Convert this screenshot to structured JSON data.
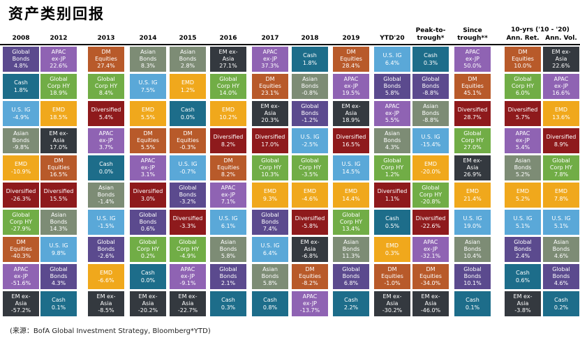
{
  "title": "资产类别回报",
  "source": "(来源：BofA Global Investment Strategy, Bloomberg*YTD)",
  "colors": {
    "Global Bonds": "#5b4a8e",
    "Cash": "#1d6d8a",
    "U.S. IG": "#5aa8d8",
    "Asian Bonds": "#7d8c75",
    "EMD": "#f0a81c",
    "Diversified": "#8e1a1c",
    "Global Corp HY": "#71ad46",
    "DM Equities": "#b85a2a",
    "APAC ex-JP": "#8f63b3",
    "EM ex-Asia": "#34393f"
  },
  "chart_data": {
    "type": "table",
    "title": "资产类别回报",
    "tenyr_header": "10-yrs ('10 - '20)",
    "columns": [
      {
        "label": "2008",
        "cells": [
          [
            "Global Bonds",
            "4.8%"
          ],
          [
            "Cash",
            "1.8%"
          ],
          [
            "U.S. IG",
            "-4.9%"
          ],
          [
            "Asian Bonds",
            "-9.8%"
          ],
          [
            "EMD",
            "-10.9%"
          ],
          [
            "Diversified",
            "-26.3%"
          ],
          [
            "Global Corp HY",
            "-27.9%"
          ],
          [
            "DM Equities",
            "-40.3%"
          ],
          [
            "APAC ex-JP",
            "-51.6%"
          ],
          [
            "EM ex-Asia",
            "-57.2%"
          ]
        ]
      },
      {
        "label": "2012",
        "cells": [
          [
            "APAC ex-JP",
            "22.6%"
          ],
          [
            "Global Corp HY",
            "18.9%"
          ],
          [
            "EMD",
            "18.5%"
          ],
          [
            "EM ex-Asia",
            "17.0%"
          ],
          [
            "DM Equities",
            "16.5%"
          ],
          [
            "Diversified",
            "15.5%"
          ],
          [
            "Asian Bonds",
            "14.3%"
          ],
          [
            "U.S. IG",
            "9.8%"
          ],
          [
            "Global Bonds",
            "4.3%"
          ],
          [
            "Cash",
            "0.1%"
          ]
        ]
      },
      {
        "label": "2013",
        "cells": [
          [
            "DM Equities",
            "27.4%"
          ],
          [
            "Global Corp HY",
            "8.4%"
          ],
          [
            "Diversified",
            "5.4%"
          ],
          [
            "APAC ex-JP",
            "3.7%"
          ],
          [
            "Cash",
            "0.0%"
          ],
          [
            "Asian Bonds",
            "-1.4%"
          ],
          [
            "U.S. IG",
            "-1.5%"
          ],
          [
            "Global Bonds",
            "-2.6%"
          ],
          [
            "EMD",
            "-6.6%"
          ],
          [
            "EM ex-Asia",
            "-8.5%"
          ]
        ]
      },
      {
        "label": "2014",
        "cells": [
          [
            "Asian Bonds",
            "8.3%"
          ],
          [
            "U.S. IG",
            "7.5%"
          ],
          [
            "EMD",
            "5.5%"
          ],
          [
            "DM Equities",
            "5.5%"
          ],
          [
            "APAC ex-JP",
            "3.1%"
          ],
          [
            "Diversified",
            "3.0%"
          ],
          [
            "Global Bonds",
            "0.6%"
          ],
          [
            "Global Corp HY",
            "0.2%"
          ],
          [
            "Cash",
            "0.0%"
          ],
          [
            "EM ex-Asia",
            "-20.2%"
          ]
        ]
      },
      {
        "label": "2015",
        "cells": [
          [
            "Asian Bonds",
            "2.8%"
          ],
          [
            "EMD",
            "1.2%"
          ],
          [
            "Cash",
            "0.0%"
          ],
          [
            "DM Equities",
            "-0.3%"
          ],
          [
            "U.S. IG",
            "-0.7%"
          ],
          [
            "Global Bonds",
            "-3.2%"
          ],
          [
            "Diversified",
            "-3.3%"
          ],
          [
            "Global Corp HY",
            "-4.9%"
          ],
          [
            "APAC ex-JP",
            "-9.1%"
          ],
          [
            "EM ex-Asia",
            "-22.7%"
          ]
        ]
      },
      {
        "label": "2016",
        "cells": [
          [
            "EM ex-Asia",
            "27.1%"
          ],
          [
            "Global Corp HY",
            "14.0%"
          ],
          [
            "EMD",
            "10.2%"
          ],
          [
            "Diversified",
            "8.2%"
          ],
          [
            "DM Equities",
            "8.2%"
          ],
          [
            "APAC ex-JP",
            "7.1%"
          ],
          [
            "U.S. IG",
            "6.1%"
          ],
          [
            "Asian Bonds",
            "5.8%"
          ],
          [
            "Global Bonds",
            "2.1%"
          ],
          [
            "Cash",
            "0.3%"
          ]
        ]
      },
      {
        "label": "2017",
        "cells": [
          [
            "APAC ex-JP",
            "37.3%"
          ],
          [
            "DM Equities",
            "23.1%"
          ],
          [
            "EM ex-Asia",
            "20.3%"
          ],
          [
            "Diversified",
            "17.0%"
          ],
          [
            "Global Corp HY",
            "10.3%"
          ],
          [
            "EMD",
            "9.3%"
          ],
          [
            "Global Bonds",
            "7.4%"
          ],
          [
            "U.S. IG",
            "6.4%"
          ],
          [
            "Asian Bonds",
            "5.8%"
          ],
          [
            "Cash",
            "0.8%"
          ]
        ]
      },
      {
        "label": "2018",
        "cells": [
          [
            "Cash",
            "1.8%"
          ],
          [
            "Asian Bonds",
            "-0.8%"
          ],
          [
            "Global Bonds",
            "-1.2%"
          ],
          [
            "U.S. IG",
            "-2.5%"
          ],
          [
            "Global Corp HY",
            "-3.5%"
          ],
          [
            "EMD",
            "-4.6%"
          ],
          [
            "Diversified",
            "-5.8%"
          ],
          [
            "EM ex-Asia",
            "-6.8%"
          ],
          [
            "DM Equities",
            "-8.2%"
          ],
          [
            "APAC ex-JP",
            "-13.7%"
          ]
        ]
      },
      {
        "label": "2019",
        "cells": [
          [
            "DM Equities",
            "28.4%"
          ],
          [
            "APAC ex-JP",
            "19.5%"
          ],
          [
            "EM ex-Asia",
            "18.9%"
          ],
          [
            "Diversified",
            "16.5%"
          ],
          [
            "U.S. IG",
            "14.5%"
          ],
          [
            "EMD",
            "14.4%"
          ],
          [
            "Global Corp HY",
            "13.4%"
          ],
          [
            "Asian Bonds",
            "11.3%"
          ],
          [
            "Global Bonds",
            "6.8%"
          ],
          [
            "Cash",
            "2.2%"
          ]
        ]
      },
      {
        "label": "YTD'20",
        "cells": [
          [
            "U.S. IG",
            "6.4%"
          ],
          [
            "Global Bonds",
            "5.8%"
          ],
          [
            "APAC ex-JP",
            "5.5%"
          ],
          [
            "Asian Bonds",
            "4.3%"
          ],
          [
            "Global Corp HY",
            "1.2%"
          ],
          [
            "Diversified",
            "1.1%"
          ],
          [
            "Cash",
            "0.5%"
          ],
          [
            "EMD",
            "0.3%"
          ],
          [
            "DM Equities",
            "-1.0%"
          ],
          [
            "EM ex-Asia",
            "-30.2%"
          ]
        ]
      },
      {
        "label": "Peak-to-\ntrough*",
        "cells": [
          [
            "Cash",
            "0.3%"
          ],
          [
            "Global Bonds",
            "-8.8%"
          ],
          [
            "Asian Bonds",
            "-8.8%"
          ],
          [
            "U.S. IG",
            "-15.4%"
          ],
          [
            "EMD",
            "-20.0%"
          ],
          [
            "Global Corp HY",
            "-20.8%"
          ],
          [
            "Diversified",
            "-22.6%"
          ],
          [
            "APAC ex-JP",
            "-32.1%"
          ],
          [
            "DM Equities",
            "-34.0%"
          ],
          [
            "EM ex-Asia",
            "-46.0%"
          ]
        ]
      },
      {
        "label": "Since\ntrough**",
        "cells": [
          [
            "APAC ex-JP",
            "50.0%"
          ],
          [
            "DM Equities",
            "45.1%"
          ],
          [
            "Diversified",
            "28.7%"
          ],
          [
            "Global Corp HY",
            "27.0%"
          ],
          [
            "EM ex-Asia",
            "26.9%"
          ],
          [
            "EMD",
            "21.4%"
          ],
          [
            "U.S. IG",
            "19.0%"
          ],
          [
            "Asian Bonds",
            "10.4%"
          ],
          [
            "Global Bonds",
            "10.1%"
          ],
          [
            "Cash",
            "0.1%"
          ]
        ]
      },
      {
        "label": "Ann. Ret.",
        "cells": [
          [
            "DM Equities",
            "10.0%"
          ],
          [
            "Global Corp HY",
            "6.0%"
          ],
          [
            "Diversified",
            "5.7%"
          ],
          [
            "APAC ex-JP",
            "5.4%"
          ],
          [
            "Asian Bonds",
            "5.2%"
          ],
          [
            "EMD",
            "5.2%"
          ],
          [
            "U.S. IG",
            "5.1%"
          ],
          [
            "Global Bonds",
            "2.4%"
          ],
          [
            "Cash",
            "0.6%"
          ],
          [
            "EM ex-Asia",
            "-3.8%"
          ]
        ]
      },
      {
        "label": "Ann. Vol.",
        "cells": [
          [
            "EM ex-Asia",
            "22.6%"
          ],
          [
            "APAC ex-JP",
            "16.6%"
          ],
          [
            "EMD",
            "13.6%"
          ],
          [
            "Diversified",
            "8.9%"
          ],
          [
            "Global Corp HY",
            "7.8%"
          ],
          [
            "EMD",
            "7.8%"
          ],
          [
            "U.S. IG",
            "5.1%"
          ],
          [
            "Asian Bonds",
            "4.6%"
          ],
          [
            "Global Bonds",
            "4.6%"
          ],
          [
            "Cash",
            "0.2%"
          ]
        ]
      }
    ],
    "names": {
      "Global Bonds": "Global\nBonds",
      "Cash": "Cash",
      "U.S. IG": "U.S. IG",
      "Asian Bonds": "Asian\nBonds",
      "EMD": "EMD",
      "Diversified": "Diversified",
      "Global Corp HY": "Global\nCorp HY",
      "DM Equities": "DM\nEquities",
      "APAC ex-JP": "APAC\nex-JP",
      "EM ex-Asia": "EM ex-\nAsia"
    }
  }
}
